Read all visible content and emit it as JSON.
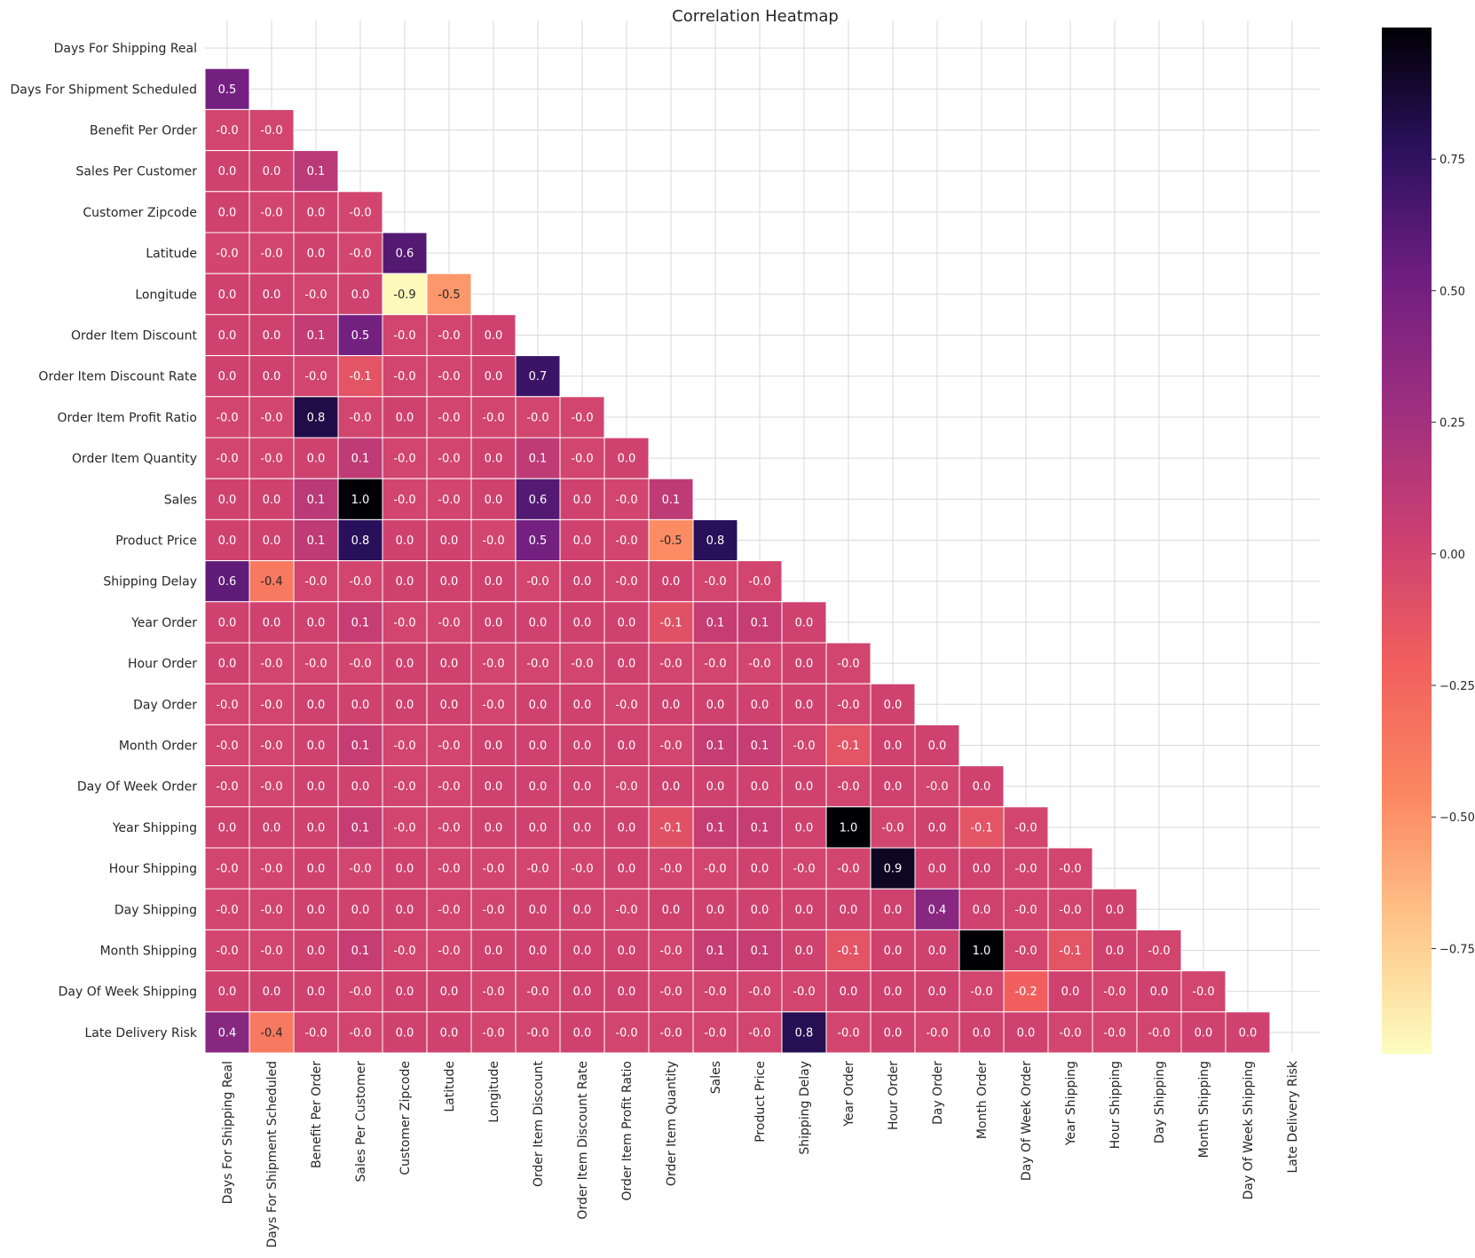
{
  "chart_data": {
    "type": "heatmap",
    "title": "Correlation Heatmap",
    "colormap": "magma_r",
    "value_range": [
      -0.95,
      1.0
    ],
    "mask": "upper-triangle-including-diagonal",
    "grid": true,
    "colorbar": {
      "ticks": [
        0.75,
        0.5,
        0.25,
        0.0,
        -0.25,
        -0.5,
        -0.75
      ],
      "tick_labels": [
        "0.75",
        "0.50",
        "0.25",
        "0.00",
        "−0.25",
        "−0.50",
        "−0.75"
      ],
      "position": "right"
    },
    "labels": [
      "Days For Shipping Real",
      "Days For Shipment Scheduled",
      "Benefit Per Order",
      "Sales Per Customer",
      "Customer Zipcode",
      "Latitude",
      "Longitude",
      "Order Item Discount",
      "Order Item Discount Rate",
      "Order Item Profit Ratio",
      "Order Item Quantity",
      "Sales",
      "Product Price",
      "Shipping Delay",
      "Year Order",
      "Hour Order",
      "Day Order",
      "Month Order",
      "Day Of Week Order",
      "Year Shipping",
      "Hour Shipping",
      "Day Shipping",
      "Month Shipping",
      "Day Of Week Shipping",
      "Late Delivery Risk"
    ],
    "rows": [
      [],
      [
        [
          "0.5",
          0.5
        ]
      ],
      [
        [
          "-0.0",
          -0.01
        ],
        [
          "-0.0",
          -0.01
        ]
      ],
      [
        [
          "0.0",
          0.01
        ],
        [
          "0.0",
          0.01
        ],
        [
          "0.1",
          0.13
        ]
      ],
      [
        [
          "0.0",
          0.01
        ],
        [
          "-0.0",
          -0.01
        ],
        [
          "0.0",
          0.01
        ],
        [
          "-0.0",
          -0.01
        ]
      ],
      [
        [
          "-0.0",
          -0.01
        ],
        [
          "-0.0",
          -0.01
        ],
        [
          "0.0",
          0.01
        ],
        [
          "-0.0",
          -0.01
        ],
        [
          "0.6",
          0.62
        ]
      ],
      [
        [
          "0.0",
          0.01
        ],
        [
          "0.0",
          0.01
        ],
        [
          "-0.0",
          -0.01
        ],
        [
          "0.0",
          0.01
        ],
        [
          "-0.9",
          -0.93
        ],
        [
          "-0.5",
          -0.52
        ]
      ],
      [
        [
          "0.0",
          0.01
        ],
        [
          "0.0",
          0.01
        ],
        [
          "0.1",
          0.08
        ],
        [
          "0.5",
          0.5
        ],
        [
          "-0.0",
          -0.01
        ],
        [
          "-0.0",
          -0.01
        ],
        [
          "0.0",
          0.01
        ]
      ],
      [
        [
          "0.0",
          0.01
        ],
        [
          "0.0",
          0.01
        ],
        [
          "-0.0",
          -0.01
        ],
        [
          "-0.1",
          -0.12
        ],
        [
          "-0.0",
          -0.01
        ],
        [
          "-0.0",
          -0.01
        ],
        [
          "0.0",
          0.01
        ],
        [
          "0.7",
          0.71
        ]
      ],
      [
        [
          "-0.0",
          -0.01
        ],
        [
          "-0.0",
          -0.01
        ],
        [
          "0.8",
          0.83
        ],
        [
          "-0.0",
          -0.01
        ],
        [
          "0.0",
          0.01
        ],
        [
          "-0.0",
          -0.01
        ],
        [
          "-0.0",
          -0.01
        ],
        [
          "-0.0",
          -0.01
        ],
        [
          "-0.0",
          -0.01
        ]
      ],
      [
        [
          "-0.0",
          -0.01
        ],
        [
          "-0.0",
          -0.01
        ],
        [
          "0.0",
          0.01
        ],
        [
          "0.1",
          0.1
        ],
        [
          "-0.0",
          -0.01
        ],
        [
          "-0.0",
          -0.01
        ],
        [
          "0.0",
          0.01
        ],
        [
          "0.1",
          0.1
        ],
        [
          "-0.0",
          -0.01
        ],
        [
          "0.0",
          0.01
        ]
      ],
      [
        [
          "0.0",
          0.01
        ],
        [
          "0.0",
          0.01
        ],
        [
          "0.1",
          0.13
        ],
        [
          "1.0",
          0.99
        ],
        [
          "-0.0",
          -0.01
        ],
        [
          "-0.0",
          -0.01
        ],
        [
          "0.0",
          0.01
        ],
        [
          "0.6",
          0.62
        ],
        [
          "0.0",
          0.01
        ],
        [
          "-0.0",
          -0.01
        ],
        [
          "0.1",
          0.1
        ]
      ],
      [
        [
          "0.0",
          0.01
        ],
        [
          "0.0",
          0.01
        ],
        [
          "0.1",
          0.1
        ],
        [
          "0.8",
          0.78
        ],
        [
          "0.0",
          0.01
        ],
        [
          "0.0",
          0.01
        ],
        [
          "-0.0",
          -0.01
        ],
        [
          "0.5",
          0.5
        ],
        [
          "0.0",
          0.01
        ],
        [
          "-0.0",
          -0.01
        ],
        [
          "-0.5",
          -0.48
        ],
        [
          "0.8",
          0.78
        ]
      ],
      [
        [
          "0.6",
          0.58
        ],
        [
          "-0.4",
          -0.37
        ],
        [
          "-0.0",
          -0.01
        ],
        [
          "-0.0",
          -0.01
        ],
        [
          "0.0",
          0.01
        ],
        [
          "0.0",
          0.01
        ],
        [
          "0.0",
          0.01
        ],
        [
          "-0.0",
          -0.01
        ],
        [
          "0.0",
          0.01
        ],
        [
          "-0.0",
          -0.01
        ],
        [
          "0.0",
          0.01
        ],
        [
          "-0.0",
          -0.01
        ],
        [
          "-0.0",
          -0.01
        ]
      ],
      [
        [
          "0.0",
          0.01
        ],
        [
          "0.0",
          0.01
        ],
        [
          "0.0",
          0.01
        ],
        [
          "0.1",
          0.07
        ],
        [
          "-0.0",
          -0.01
        ],
        [
          "-0.0",
          -0.01
        ],
        [
          "0.0",
          0.01
        ],
        [
          "0.0",
          0.01
        ],
        [
          "0.0",
          0.01
        ],
        [
          "0.0",
          0.01
        ],
        [
          "-0.1",
          -0.1
        ],
        [
          "0.1",
          0.07
        ],
        [
          "0.1",
          0.07
        ],
        [
          "0.0",
          0.01
        ]
      ],
      [
        [
          "0.0",
          0.01
        ],
        [
          "-0.0",
          -0.01
        ],
        [
          "-0.0",
          -0.01
        ],
        [
          "-0.0",
          -0.01
        ],
        [
          "0.0",
          0.01
        ],
        [
          "0.0",
          0.01
        ],
        [
          "-0.0",
          -0.01
        ],
        [
          "-0.0",
          -0.01
        ],
        [
          "-0.0",
          -0.01
        ],
        [
          "0.0",
          0.01
        ],
        [
          "-0.0",
          -0.01
        ],
        [
          "-0.0",
          -0.01
        ],
        [
          "-0.0",
          -0.01
        ],
        [
          "0.0",
          0.01
        ],
        [
          "-0.0",
          -0.01
        ]
      ],
      [
        [
          "-0.0",
          -0.01
        ],
        [
          "-0.0",
          -0.01
        ],
        [
          "0.0",
          0.01
        ],
        [
          "0.0",
          0.01
        ],
        [
          "0.0",
          0.01
        ],
        [
          "0.0",
          0.01
        ],
        [
          "-0.0",
          -0.01
        ],
        [
          "0.0",
          0.01
        ],
        [
          "0.0",
          0.01
        ],
        [
          "-0.0",
          -0.01
        ],
        [
          "0.0",
          0.01
        ],
        [
          "0.0",
          0.01
        ],
        [
          "0.0",
          0.01
        ],
        [
          "0.0",
          0.01
        ],
        [
          "-0.0",
          -0.01
        ],
        [
          "0.0",
          0.01
        ]
      ],
      [
        [
          "-0.0",
          -0.01
        ],
        [
          "-0.0",
          -0.01
        ],
        [
          "0.0",
          0.01
        ],
        [
          "0.1",
          0.07
        ],
        [
          "-0.0",
          -0.01
        ],
        [
          "-0.0",
          -0.01
        ],
        [
          "0.0",
          0.01
        ],
        [
          "0.0",
          0.01
        ],
        [
          "0.0",
          0.01
        ],
        [
          "0.0",
          0.01
        ],
        [
          "-0.0",
          -0.01
        ],
        [
          "0.1",
          0.07
        ],
        [
          "0.1",
          0.07
        ],
        [
          "-0.0",
          -0.01
        ],
        [
          "-0.1",
          -0.12
        ],
        [
          "0.0",
          0.01
        ],
        [
          "0.0",
          0.01
        ]
      ],
      [
        [
          "-0.0",
          -0.01
        ],
        [
          "-0.0",
          -0.01
        ],
        [
          "0.0",
          0.01
        ],
        [
          "0.0",
          0.01
        ],
        [
          "-0.0",
          -0.01
        ],
        [
          "-0.0",
          -0.01
        ],
        [
          "0.0",
          0.01
        ],
        [
          "0.0",
          0.01
        ],
        [
          "0.0",
          0.01
        ],
        [
          "-0.0",
          -0.01
        ],
        [
          "0.0",
          0.01
        ],
        [
          "0.0",
          0.01
        ],
        [
          "0.0",
          0.01
        ],
        [
          "0.0",
          0.01
        ],
        [
          "-0.0",
          -0.01
        ],
        [
          "0.0",
          0.01
        ],
        [
          "-0.0",
          -0.01
        ],
        [
          "0.0",
          0.01
        ]
      ],
      [
        [
          "0.0",
          0.01
        ],
        [
          "0.0",
          0.01
        ],
        [
          "0.0",
          0.01
        ],
        [
          "0.1",
          0.07
        ],
        [
          "-0.0",
          -0.01
        ],
        [
          "-0.0",
          -0.01
        ],
        [
          "0.0",
          0.01
        ],
        [
          "0.0",
          0.01
        ],
        [
          "0.0",
          0.01
        ],
        [
          "0.0",
          0.01
        ],
        [
          "-0.1",
          -0.1
        ],
        [
          "0.1",
          0.07
        ],
        [
          "0.1",
          0.07
        ],
        [
          "0.0",
          0.01
        ],
        [
          "1.0",
          1.0
        ],
        [
          "-0.0",
          -0.01
        ],
        [
          "0.0",
          0.01
        ],
        [
          "-0.1",
          -0.12
        ],
        [
          "-0.0",
          -0.01
        ]
      ],
      [
        [
          "-0.0",
          -0.01
        ],
        [
          "-0.0",
          -0.01
        ],
        [
          "0.0",
          0.01
        ],
        [
          "-0.0",
          -0.01
        ],
        [
          "0.0",
          0.01
        ],
        [
          "-0.0",
          -0.01
        ],
        [
          "-0.0",
          -0.01
        ],
        [
          "-0.0",
          -0.01
        ],
        [
          "-0.0",
          -0.01
        ],
        [
          "0.0",
          0.01
        ],
        [
          "-0.0",
          -0.01
        ],
        [
          "-0.0",
          -0.01
        ],
        [
          "0.0",
          0.01
        ],
        [
          "-0.0",
          -0.01
        ],
        [
          "-0.0",
          -0.01
        ],
        [
          "0.9",
          0.92
        ],
        [
          "0.0",
          0.01
        ],
        [
          "0.0",
          0.01
        ],
        [
          "-0.0",
          -0.01
        ],
        [
          "-0.0",
          -0.01
        ]
      ],
      [
        [
          "-0.0",
          -0.01
        ],
        [
          "-0.0",
          -0.01
        ],
        [
          "0.0",
          0.01
        ],
        [
          "0.0",
          0.01
        ],
        [
          "0.0",
          0.01
        ],
        [
          "-0.0",
          -0.01
        ],
        [
          "-0.0",
          -0.01
        ],
        [
          "0.0",
          0.01
        ],
        [
          "0.0",
          0.01
        ],
        [
          "-0.0",
          -0.01
        ],
        [
          "0.0",
          0.01
        ],
        [
          "0.0",
          0.01
        ],
        [
          "0.0",
          0.01
        ],
        [
          "0.0",
          0.01
        ],
        [
          "0.0",
          0.01
        ],
        [
          "0.0",
          0.01
        ],
        [
          "0.4",
          0.4
        ],
        [
          "0.0",
          0.01
        ],
        [
          "-0.0",
          -0.01
        ],
        [
          "-0.0",
          -0.01
        ],
        [
          "0.0",
          0.01
        ]
      ],
      [
        [
          "-0.0",
          -0.01
        ],
        [
          "-0.0",
          -0.01
        ],
        [
          "0.0",
          0.01
        ],
        [
          "0.1",
          0.07
        ],
        [
          "-0.0",
          -0.01
        ],
        [
          "-0.0",
          -0.01
        ],
        [
          "0.0",
          0.01
        ],
        [
          "0.0",
          0.01
        ],
        [
          "0.0",
          0.01
        ],
        [
          "0.0",
          0.01
        ],
        [
          "-0.0",
          -0.01
        ],
        [
          "0.1",
          0.07
        ],
        [
          "0.1",
          0.07
        ],
        [
          "0.0",
          0.01
        ],
        [
          "-0.1",
          -0.12
        ],
        [
          "0.0",
          0.01
        ],
        [
          "0.0",
          0.01
        ],
        [
          "1.0",
          1.0
        ],
        [
          "-0.0",
          -0.01
        ],
        [
          "-0.1",
          -0.12
        ],
        [
          "0.0",
          0.01
        ],
        [
          "-0.0",
          -0.01
        ]
      ],
      [
        [
          "0.0",
          0.01
        ],
        [
          "0.0",
          0.01
        ],
        [
          "0.0",
          0.01
        ],
        [
          "-0.0",
          -0.01
        ],
        [
          "0.0",
          0.01
        ],
        [
          "0.0",
          0.01
        ],
        [
          "-0.0",
          -0.01
        ],
        [
          "-0.0",
          -0.01
        ],
        [
          "0.0",
          0.01
        ],
        [
          "0.0",
          0.01
        ],
        [
          "-0.0",
          -0.01
        ],
        [
          "-0.0",
          -0.01
        ],
        [
          "-0.0",
          -0.01
        ],
        [
          "-0.0",
          -0.01
        ],
        [
          "0.0",
          0.01
        ],
        [
          "0.0",
          0.01
        ],
        [
          "0.0",
          0.01
        ],
        [
          "-0.0",
          -0.01
        ],
        [
          "-0.2",
          -0.2
        ],
        [
          "0.0",
          0.01
        ],
        [
          "-0.0",
          -0.01
        ],
        [
          "0.0",
          0.01
        ],
        [
          "-0.0",
          -0.01
        ]
      ],
      [
        [
          "0.4",
          0.4
        ],
        [
          "-0.4",
          -0.37
        ],
        [
          "-0.0",
          -0.01
        ],
        [
          "-0.0",
          -0.01
        ],
        [
          "0.0",
          0.01
        ],
        [
          "0.0",
          0.01
        ],
        [
          "-0.0",
          -0.01
        ],
        [
          "-0.0",
          -0.01
        ],
        [
          "0.0",
          0.01
        ],
        [
          "-0.0",
          -0.01
        ],
        [
          "-0.0",
          -0.01
        ],
        [
          "-0.0",
          -0.01
        ],
        [
          "-0.0",
          -0.01
        ],
        [
          "0.8",
          0.8
        ],
        [
          "-0.0",
          -0.01
        ],
        [
          "0.0",
          0.01
        ],
        [
          "-0.0",
          -0.01
        ],
        [
          "0.0",
          0.01
        ],
        [
          "0.0",
          0.01
        ],
        [
          "-0.0",
          -0.01
        ],
        [
          "-0.0",
          -0.01
        ],
        [
          "-0.0",
          -0.01
        ],
        [
          "0.0",
          0.01
        ],
        [
          "0.0",
          0.01
        ]
      ]
    ]
  }
}
